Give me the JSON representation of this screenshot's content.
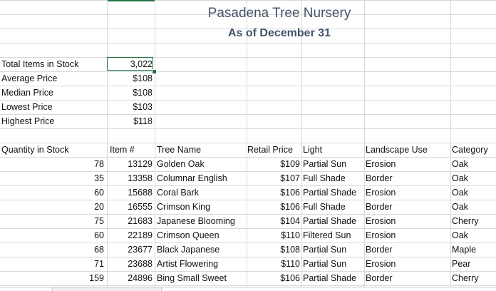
{
  "title": "Pasadena Tree Nursery",
  "subtitle": "As of December 31",
  "summary": [
    {
      "label": "Total Items in Stock",
      "value": "3,022"
    },
    {
      "label": "Average Price",
      "value": "$108"
    },
    {
      "label": "Median Price",
      "value": "$108"
    },
    {
      "label": "Lowest Price",
      "value": "$103"
    },
    {
      "label": "Highest Price",
      "value": "$118"
    }
  ],
  "headers": {
    "quantity": "Quantity in Stock",
    "item": "Item #",
    "name": "Tree Name",
    "price": "Retail Price",
    "light": "Light",
    "landscape": "Landscape Use",
    "category": "Category"
  },
  "rows": [
    {
      "quantity": "78",
      "item": "13129",
      "name": "Golden Oak",
      "price": "$109",
      "light": "Partial Sun",
      "landscape": "Erosion",
      "category": "Oak"
    },
    {
      "quantity": "35",
      "item": "13358",
      "name": "Columnar English",
      "price": "$107",
      "light": "Full Shade",
      "landscape": "Border",
      "category": "Oak"
    },
    {
      "quantity": "60",
      "item": "15688",
      "name": "Coral Bark",
      "price": "$106",
      "light": "Partial Shade",
      "landscape": "Erosion",
      "category": "Oak"
    },
    {
      "quantity": "20",
      "item": "16555",
      "name": "Crimson King",
      "price": "$106",
      "light": "Full Shade",
      "landscape": "Border",
      "category": "Oak"
    },
    {
      "quantity": "75",
      "item": "21683",
      "name": "Japanese Blooming",
      "price": "$104",
      "light": "Partial Shade",
      "landscape": "Erosion",
      "category": "Cherry"
    },
    {
      "quantity": "60",
      "item": "22189",
      "name": "Crimson Queen",
      "price": "$110",
      "light": "Filtered Sun",
      "landscape": "Erosion",
      "category": "Oak"
    },
    {
      "quantity": "68",
      "item": "23677",
      "name": "Black Japanese",
      "price": "$108",
      "light": "Partial Sun",
      "landscape": "Border",
      "category": "Maple"
    },
    {
      "quantity": "71",
      "item": "23688",
      "name": "Artist Flowering",
      "price": "$110",
      "light": "Partial Sun",
      "landscape": "Erosion",
      "category": "Pear"
    },
    {
      "quantity": "159",
      "item": "24896",
      "name": "Bing Small Sweet",
      "price": "$106",
      "light": "Partial Shade",
      "landscape": "Border",
      "category": "Cherry"
    }
  ]
}
